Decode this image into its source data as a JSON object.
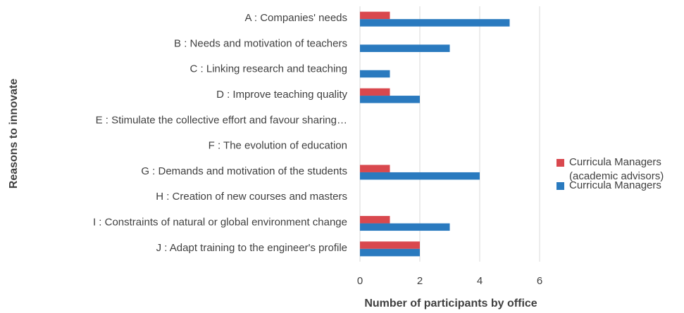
{
  "chart_data": {
    "type": "hbar",
    "categories": [
      "A : Companies' needs",
      "B : Needs and motivation of teachers",
      "C : Linking research and teaching",
      "D : Improve teaching quality",
      "E : Stimulate the collective effort and favour sharing…",
      "F : The evolution of education",
      "G : Demands and motivation of the students",
      "H : Creation of new courses and masters",
      "I : Constraints of natural or global environment change",
      "J : Adapt training to the engineer's profile"
    ],
    "series": [
      {
        "name": "Curricula Managers (academic advisors)",
        "color": "#d9484e",
        "values": [
          1,
          0,
          0,
          1,
          0,
          0,
          1,
          0,
          1,
          2
        ]
      },
      {
        "name": "Curricula Managers",
        "color": "#2a7abf",
        "values": [
          5,
          3,
          1,
          2,
          0,
          0,
          4,
          0,
          3,
          2
        ]
      }
    ],
    "xlabel": "Number of participants by office",
    "ylabel": "Reasons to innovate",
    "xlim": [
      0,
      6
    ],
    "xticks": [
      0,
      2,
      4,
      6
    ],
    "grid": true,
    "legend": "right"
  }
}
